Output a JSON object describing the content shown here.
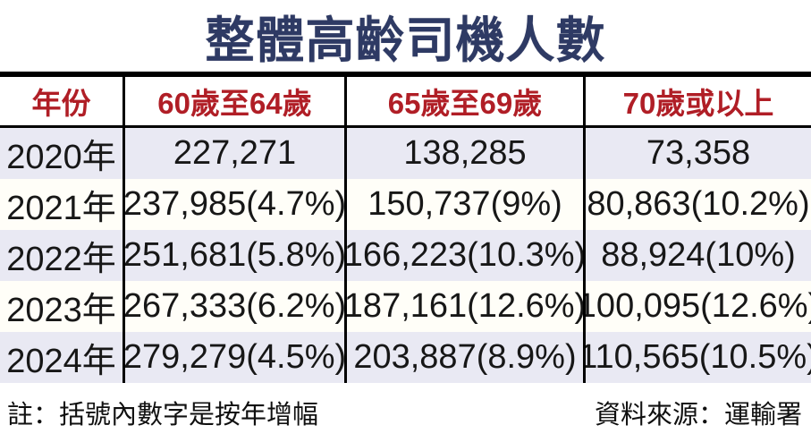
{
  "chart_data": {
    "type": "table",
    "title": "整體高齡司機人數",
    "columns": [
      "年份",
      "60歲至64歲",
      "65歲至69歲",
      "70歲或以上"
    ],
    "rows": [
      [
        "2020年",
        "227,271",
        "138,285",
        "73,358"
      ],
      [
        "2021年",
        "237,985(4.7%)",
        "150,737(9%)",
        "80,863(10.2%)"
      ],
      [
        "2022年",
        "251,681(5.8%)",
        "166,223(10.3%)",
        "88,924(10%)"
      ],
      [
        "2023年",
        "267,333(6.2%)",
        "187,161(12.6%)",
        "100,095(12.6%)"
      ],
      [
        "2024年",
        "279,279(4.5%)",
        "203,887(8.9%)",
        "110,565(10.5%)"
      ]
    ],
    "note": "註：括號內數字是按年增幅",
    "source": "資料來源：運輸署"
  },
  "colors": {
    "title": "#2e3a64",
    "header_text": "#b01e26",
    "row_alt": "#e9e9f3",
    "row_base": "#fffef8",
    "border": "#000000"
  }
}
